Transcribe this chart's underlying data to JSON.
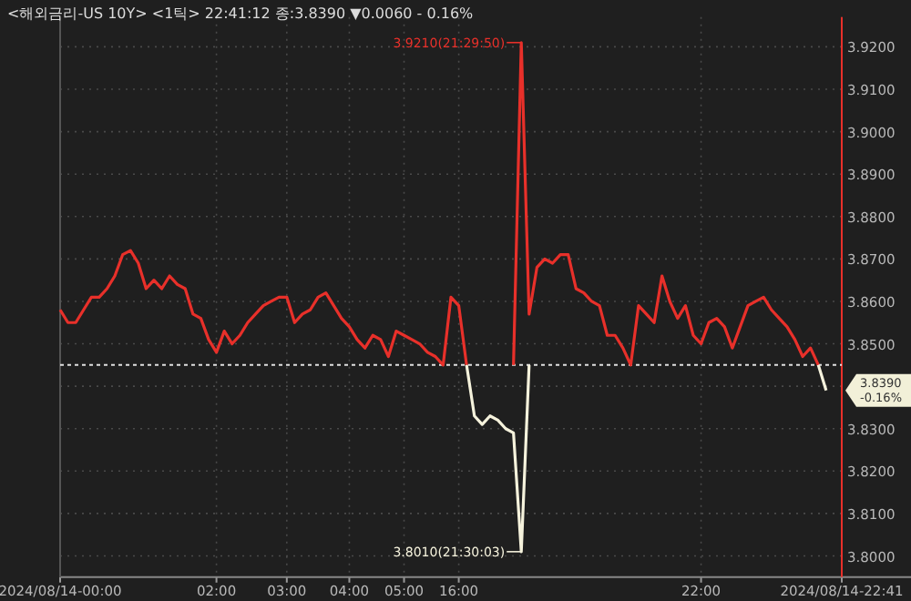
{
  "chart_data": {
    "type": "line",
    "title": "<해외금리-US 10Y> <1틱> 22:41:12 종:3.8390 ▼0.0060 - 0.16%",
    "categories": [
      "2024/08/14-00:00",
      null,
      null,
      null,
      null,
      null,
      null,
      null,
      null,
      null,
      null,
      null,
      null,
      null,
      null,
      null,
      null,
      null,
      null,
      null,
      "02:00",
      null,
      null,
      null,
      null,
      null,
      null,
      null,
      null,
      "03:00",
      null,
      null,
      null,
      null,
      null,
      null,
      null,
      "04:00",
      null,
      null,
      null,
      null,
      null,
      null,
      "05:00",
      null,
      null,
      null,
      null,
      null,
      null,
      "16:00",
      null,
      null,
      null,
      null,
      null,
      null,
      null,
      null,
      null,
      null,
      null,
      null,
      null,
      null,
      null,
      null,
      null,
      null,
      null,
      null,
      null,
      null,
      null,
      null,
      null,
      null,
      null,
      null,
      null,
      null,
      "22:00",
      null,
      null,
      null,
      null,
      null,
      null,
      null,
      null,
      null,
      null,
      null,
      null,
      null,
      null,
      null,
      null,
      null,
      "2024/08/14-22:41"
    ],
    "ylim": [
      3.795,
      3.927
    ],
    "yticks": [
      {
        "value": 3.8,
        "label": "3.8000"
      },
      {
        "value": 3.81,
        "label": "3.8100"
      },
      {
        "value": 3.82,
        "label": "3.8200"
      },
      {
        "value": 3.83,
        "label": "3.8300"
      },
      {
        "value": 3.84,
        "label": null
      },
      {
        "value": 3.85,
        "label": "3.8500"
      },
      {
        "value": 3.86,
        "label": "3.8600"
      },
      {
        "value": 3.87,
        "label": "3.8700"
      },
      {
        "value": 3.88,
        "label": "3.8800"
      },
      {
        "value": 3.89,
        "label": "3.8900"
      },
      {
        "value": 3.9,
        "label": "3.9000"
      },
      {
        "value": 3.91,
        "label": "3.9100"
      },
      {
        "value": 3.92,
        "label": "3.9200"
      }
    ],
    "grid": true,
    "line_style": "solid",
    "series": [
      {
        "color": "#e8302a",
        "values": [
          3.858,
          3.855,
          3.855,
          3.858,
          3.861,
          3.861,
          3.863,
          3.866,
          3.871,
          3.872,
          3.869,
          3.863,
          3.865,
          3.863,
          3.866,
          3.864,
          3.863,
          3.857,
          3.856,
          3.851,
          3.848,
          3.853,
          3.85,
          3.852,
          3.855,
          3.857,
          3.859,
          3.86,
          3.861,
          3.861,
          3.855,
          3.857,
          3.858,
          3.861,
          3.862,
          3.859,
          3.856,
          3.854,
          3.851,
          3.849,
          3.852,
          3.851,
          3.847,
          3.853,
          3.852,
          3.851,
          3.85,
          3.848,
          3.847,
          3.845,
          3.861,
          3.859,
          3.845,
          null,
          null,
          null,
          null,
          null,
          3.845,
          3.921,
          3.857,
          3.868,
          3.87,
          3.869,
          3.871,
          3.871,
          3.863,
          3.862,
          3.86,
          3.859,
          3.852,
          3.852,
          3.849,
          3.845,
          3.859,
          3.857,
          3.855,
          3.866,
          3.86,
          3.856,
          3.859,
          3.852,
          3.85,
          3.855,
          3.856,
          3.854,
          3.849,
          3.854,
          3.859,
          3.86,
          3.861,
          3.858,
          3.856,
          3.854,
          3.851,
          3.847,
          3.849,
          3.845,
          null,
          null,
          null
        ]
      },
      {
        "color": "#f5f2dc",
        "values": [
          null,
          null,
          null,
          null,
          null,
          null,
          null,
          null,
          null,
          null,
          null,
          null,
          null,
          null,
          null,
          null,
          null,
          null,
          null,
          null,
          null,
          null,
          null,
          null,
          null,
          null,
          null,
          null,
          null,
          null,
          null,
          null,
          null,
          null,
          null,
          null,
          null,
          null,
          null,
          null,
          null,
          null,
          null,
          null,
          null,
          null,
          null,
          null,
          null,
          null,
          null,
          null,
          3.845,
          3.833,
          3.831,
          3.833,
          3.832,
          3.83,
          3.829,
          3.801,
          3.845,
          null,
          null,
          null,
          null,
          null,
          null,
          null,
          null,
          null,
          null,
          null,
          null,
          null,
          null,
          null,
          null,
          null,
          null,
          null,
          null,
          null,
          null,
          null,
          null,
          null,
          null,
          null,
          null,
          null,
          null,
          null,
          null,
          null,
          null,
          null,
          null,
          3.845,
          3.839,
          null,
          null
        ]
      }
    ],
    "ref_lines": [
      {
        "axis": "y",
        "value": 3.845,
        "color": "#e0e0e0",
        "line_style": "dotted"
      }
    ],
    "annotations": [
      "3.9210(21:29:50)",
      "3.8010(21:30:03)",
      "3.8390",
      "-0.16%"
    ]
  }
}
